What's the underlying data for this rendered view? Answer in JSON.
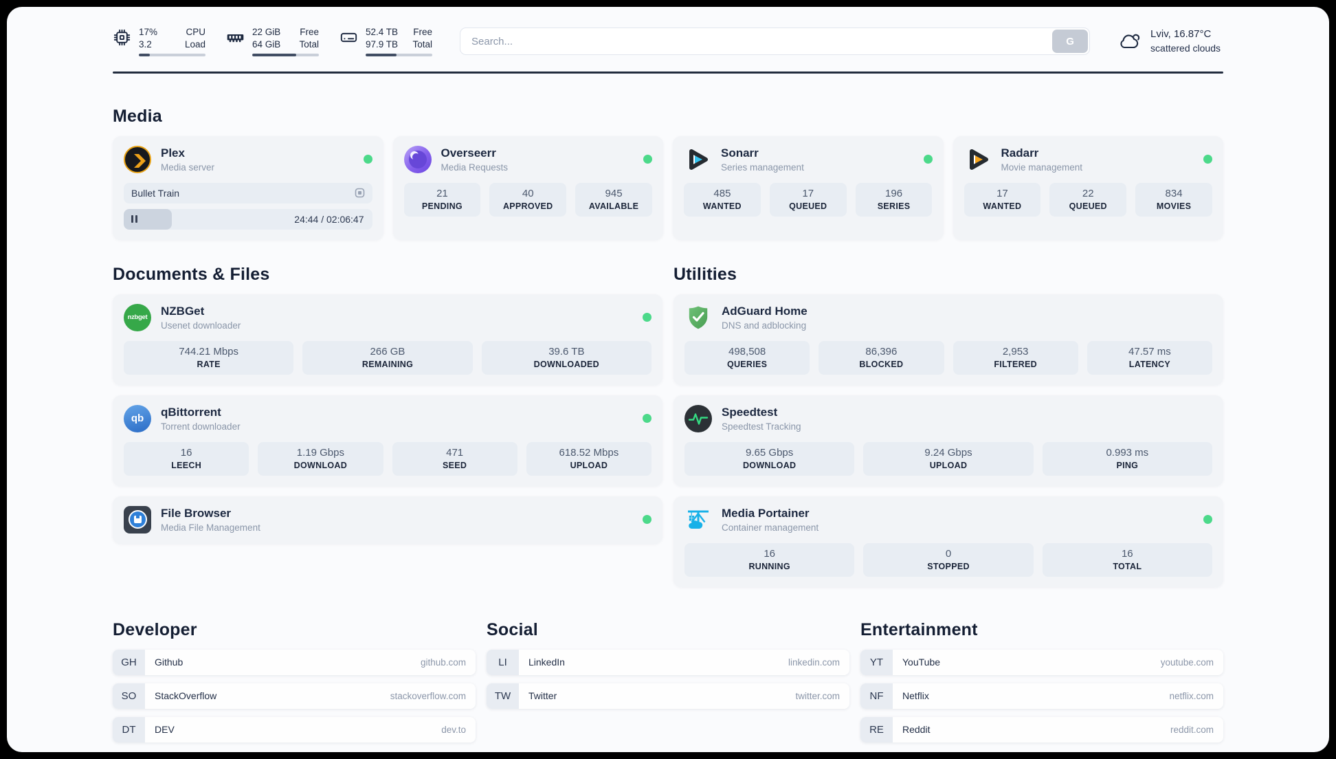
{
  "colors": {
    "status_online": "#4cd98a",
    "plex_yellow": "#e7a012",
    "sonarr_cyan": "#35c3ef",
    "radarr_orange": "#f6a41c",
    "nzbget_green": "#36a849",
    "qbittorrent_blue": "#2b6cc6",
    "adguard_green": "#5aab68",
    "speedtest_pulse": "#35db82",
    "portainer_blue": "#18b1e8"
  },
  "header": {
    "resources": [
      {
        "icon": "cpu-icon",
        "values": [
          "17%",
          "3.2"
        ],
        "labels": [
          "CPU",
          "Load"
        ],
        "percent": 17
      },
      {
        "icon": "memory-icon",
        "values": [
          "22 GiB",
          "64 GiB"
        ],
        "labels": [
          "Free",
          "Total"
        ],
        "percent": 66
      },
      {
        "icon": "disk-icon",
        "values": [
          "52.4 TB",
          "97.9 TB"
        ],
        "labels": [
          "Free",
          "Total"
        ],
        "percent": 46
      }
    ],
    "search": {
      "placeholder": "Search...",
      "button_label": "G"
    },
    "weather": {
      "location_temp": "Lviv, 16.87°C",
      "condition": "scattered clouds"
    }
  },
  "media": {
    "title": "Media",
    "plex": {
      "title": "Plex",
      "subtitle": "Media server",
      "online": true,
      "now_playing": "Bullet Train",
      "time": "24:44 / 02:06:47",
      "progress_percent": 19.5
    },
    "overseerr": {
      "title": "Overseerr",
      "subtitle": "Media Requests",
      "online": true,
      "stats": [
        {
          "value": "21",
          "label": "PENDING"
        },
        {
          "value": "40",
          "label": "APPROVED"
        },
        {
          "value": "945",
          "label": "AVAILABLE"
        }
      ]
    },
    "sonarr": {
      "title": "Sonarr",
      "subtitle": "Series management",
      "online": true,
      "stats": [
        {
          "value": "485",
          "label": "WANTED"
        },
        {
          "value": "17",
          "label": "QUEUED"
        },
        {
          "value": "196",
          "label": "SERIES"
        }
      ]
    },
    "radarr": {
      "title": "Radarr",
      "subtitle": "Movie management",
      "online": true,
      "stats": [
        {
          "value": "17",
          "label": "WANTED"
        },
        {
          "value": "22",
          "label": "QUEUED"
        },
        {
          "value": "834",
          "label": "MOVIES"
        }
      ]
    }
  },
  "documents": {
    "title": "Documents & Files",
    "nzbget": {
      "title": "NZBGet",
      "subtitle": "Usenet downloader",
      "online": true,
      "icon_text": "nzbget",
      "stats": [
        {
          "value": "744.21 Mbps",
          "label": "RATE"
        },
        {
          "value": "266 GB",
          "label": "REMAINING"
        },
        {
          "value": "39.6 TB",
          "label": "DOWNLOADED"
        }
      ]
    },
    "qbittorrent": {
      "title": "qBittorrent",
      "subtitle": "Torrent downloader",
      "online": true,
      "icon_text": "qb",
      "stats": [
        {
          "value": "16",
          "label": "LEECH"
        },
        {
          "value": "1.19 Gbps",
          "label": "DOWNLOAD"
        },
        {
          "value": "471",
          "label": "SEED"
        },
        {
          "value": "618.52 Mbps",
          "label": "UPLOAD"
        }
      ]
    },
    "filebrowser": {
      "title": "File Browser",
      "subtitle": "Media File Management",
      "online": true
    }
  },
  "utilities": {
    "title": "Utilities",
    "adguard": {
      "title": "AdGuard Home",
      "subtitle": "DNS and adblocking",
      "stats": [
        {
          "value": "498,508",
          "label": "QUERIES"
        },
        {
          "value": "86,396",
          "label": "BLOCKED"
        },
        {
          "value": "2,953",
          "label": "FILTERED"
        },
        {
          "value": "47.57 ms",
          "label": "LATENCY"
        }
      ]
    },
    "speedtest": {
      "title": "Speedtest",
      "subtitle": "Speedtest Tracking",
      "stats": [
        {
          "value": "9.65 Gbps",
          "label": "DOWNLOAD"
        },
        {
          "value": "9.24 Gbps",
          "label": "UPLOAD"
        },
        {
          "value": "0.993 ms",
          "label": "PING"
        }
      ]
    },
    "portainer": {
      "title": "Media Portainer",
      "subtitle": "Container management",
      "online": true,
      "stats": [
        {
          "value": "16",
          "label": "RUNNING"
        },
        {
          "value": "0",
          "label": "STOPPED"
        },
        {
          "value": "16",
          "label": "TOTAL"
        }
      ]
    }
  },
  "bookmarks": [
    {
      "title": "Developer",
      "items": [
        {
          "abbr": "GH",
          "name": "Github",
          "url": "github.com"
        },
        {
          "abbr": "SO",
          "name": "StackOverflow",
          "url": "stackoverflow.com"
        },
        {
          "abbr": "DT",
          "name": "DEV",
          "url": "dev.to"
        }
      ]
    },
    {
      "title": "Social",
      "items": [
        {
          "abbr": "LI",
          "name": "LinkedIn",
          "url": "linkedin.com"
        },
        {
          "abbr": "TW",
          "name": "Twitter",
          "url": "twitter.com"
        }
      ]
    },
    {
      "title": "Entertainment",
      "items": [
        {
          "abbr": "YT",
          "name": "YouTube",
          "url": "youtube.com"
        },
        {
          "abbr": "NF",
          "name": "Netflix",
          "url": "netflix.com"
        },
        {
          "abbr": "RE",
          "name": "Reddit",
          "url": "reddit.com"
        }
      ]
    }
  ]
}
